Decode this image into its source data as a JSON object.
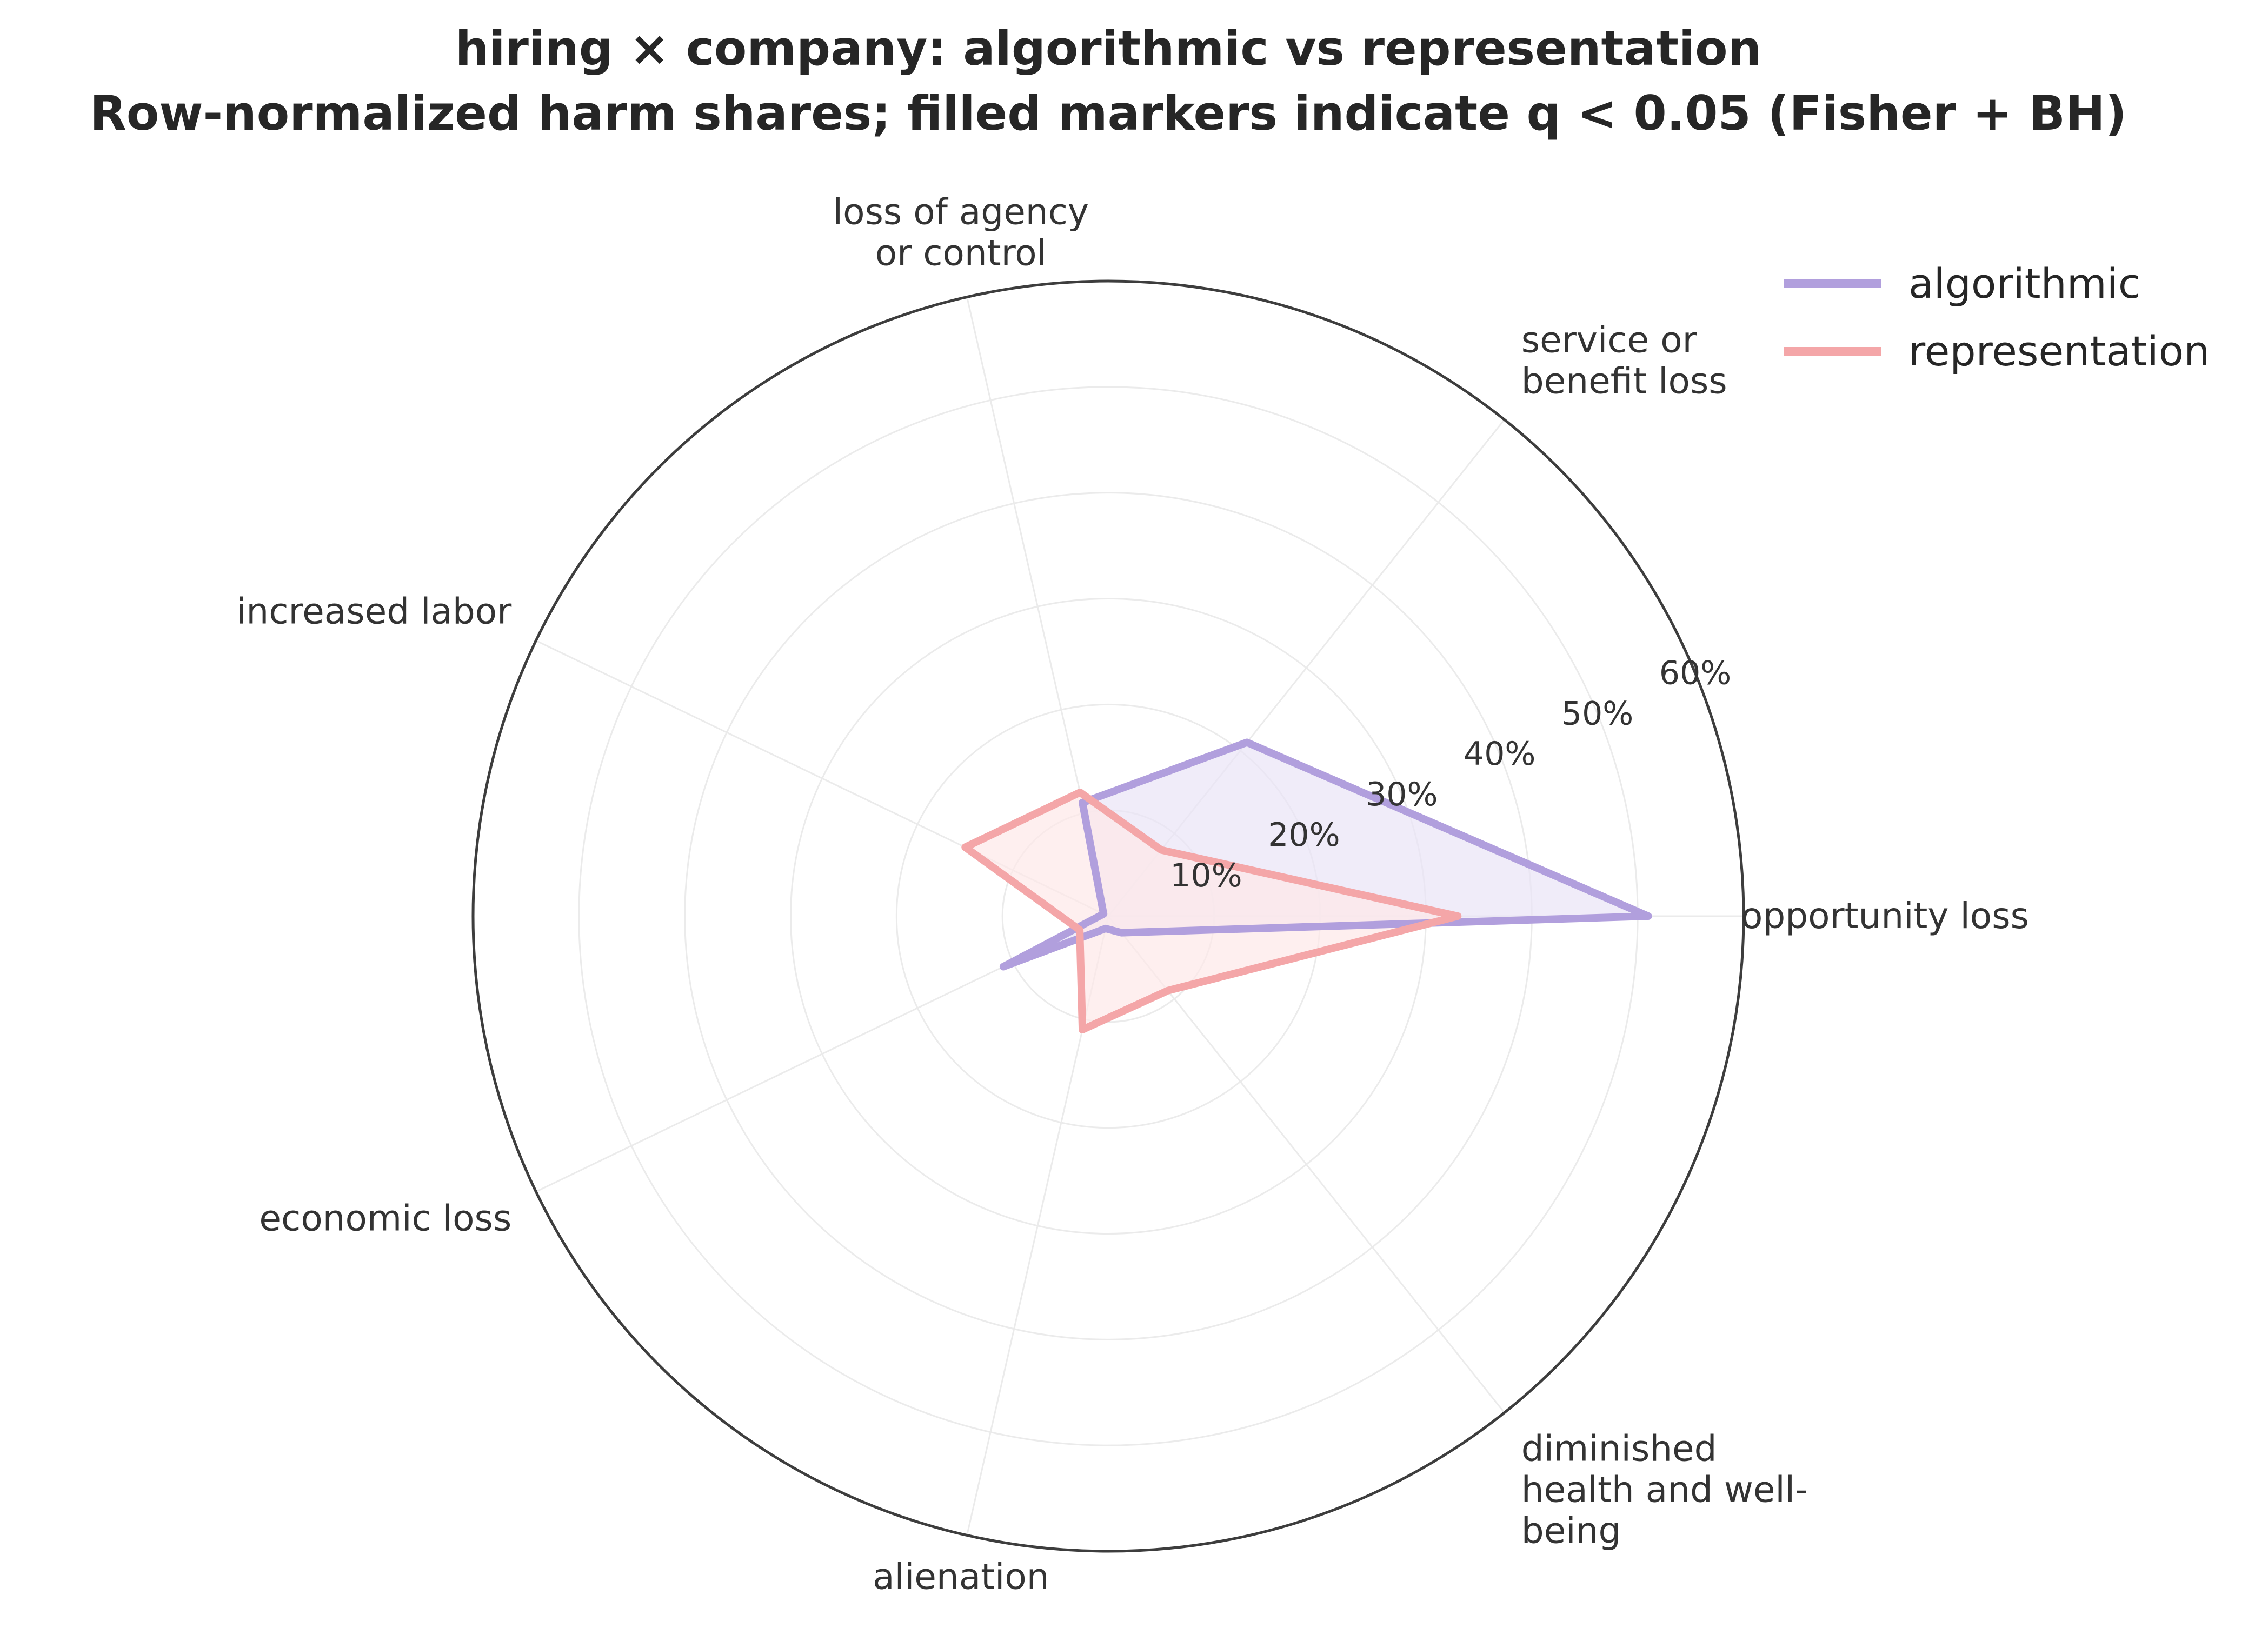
{
  "chart_data": {
    "type": "radar",
    "title": "hiring × company: algorithmic vs representation",
    "subtitle": "Row-normalized harm shares; filled markers indicate q < 0.05 (Fisher + BH)",
    "categories": [
      [
        "opportunity loss"
      ],
      [
        "service or",
        "benefit loss"
      ],
      [
        "loss of agency",
        "or control"
      ],
      [
        "increased labor"
      ],
      [
        "economic loss"
      ],
      [
        "alienation"
      ],
      [
        "diminished",
        "health and well-",
        "being"
      ]
    ],
    "r_ticks": [
      "10%",
      "20%",
      "30%",
      "40%",
      "50%",
      "60%"
    ],
    "r_tick_values": [
      10,
      20,
      30,
      40,
      50,
      60
    ],
    "rlim": [
      0,
      60
    ],
    "grid": true,
    "legend_position": "top-right",
    "series": [
      {
        "name": "algorithmic",
        "values": [
          51,
          21,
          11,
          0.5,
          11,
          1.2,
          2
        ],
        "color": "#b19fdd",
        "fill": "#e9e4f7"
      },
      {
        "name": "representation",
        "values": [
          33,
          8,
          12,
          15,
          3,
          11,
          9
        ],
        "color": "#f4a6a8",
        "fill": "#fde8e8"
      }
    ]
  }
}
